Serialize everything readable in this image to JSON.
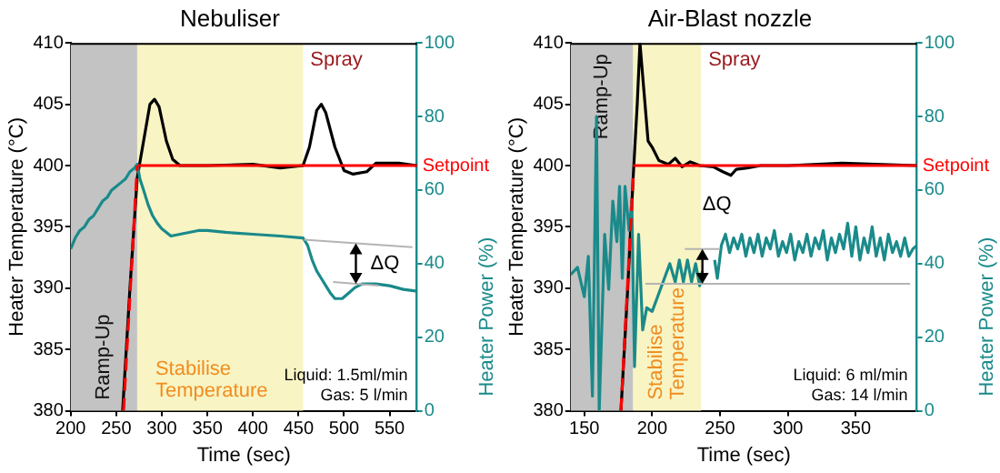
{
  "chart_data": [
    {
      "type": "line",
      "title": "Nebuliser",
      "xlabel": "Time (sec)",
      "ylabel": "Heater Temperature (°C)",
      "y2label": "Heater Power (%)",
      "marker": "none",
      "xlim": [
        200,
        580
      ],
      "xticks": [
        200,
        250,
        300,
        350,
        400,
        450,
        500,
        550
      ],
      "ylim": [
        380,
        410
      ],
      "yticks": [
        380,
        385,
        390,
        395,
        400,
        405,
        410
      ],
      "y2lim": [
        0,
        100
      ],
      "y2ticks": [
        0,
        20,
        40,
        60,
        80,
        100
      ],
      "bands": [
        {
          "axis": "x",
          "from": 200,
          "to": 273,
          "label": "Ramp-Up",
          "color": "#c3c3c3"
        },
        {
          "axis": "x",
          "from": 273,
          "to": 455,
          "label": "Stabilise Temperature",
          "color": "#f8f4c4"
        }
      ],
      "series": [
        {
          "color": "#000000",
          "x": [
            257,
            265,
            273,
            280,
            287,
            292,
            297,
            305,
            312,
            320,
            350,
            400,
            430,
            455,
            462,
            470,
            475,
            480,
            490,
            500,
            510,
            525,
            535,
            560,
            580
          ],
          "values": [
            380,
            390,
            399,
            402,
            405,
            405.4,
            404.8,
            402,
            400.5,
            400,
            400,
            400.1,
            399.8,
            400,
            401.5,
            404.5,
            405,
            404.3,
            401.5,
            399.6,
            399.3,
            399.5,
            400.2,
            400.2,
            400
          ]
        },
        {
          "color": "#1a8a8a",
          "axis": "y2",
          "x": [
            200,
            205,
            210,
            215,
            220,
            225,
            230,
            235,
            240,
            245,
            250,
            255,
            260,
            265,
            270,
            273,
            276,
            280,
            285,
            290,
            295,
            300,
            305,
            310,
            320,
            330,
            340,
            350,
            370,
            400,
            430,
            455,
            460,
            465,
            470,
            475,
            480,
            485,
            490,
            498,
            505,
            512,
            520,
            535,
            550,
            565,
            580
          ],
          "values": [
            44,
            47,
            49,
            50,
            52,
            53,
            55,
            57,
            58,
            60,
            61,
            62,
            63,
            65,
            66,
            67,
            63,
            60,
            56,
            53,
            51,
            49.5,
            48.5,
            47.5,
            48,
            48.5,
            49,
            49,
            48.5,
            48,
            47.5,
            47,
            45,
            41,
            38,
            36,
            34,
            32,
            30.5,
            30.5,
            32,
            33.5,
            34.5,
            34.5,
            34,
            33,
            32.5
          ]
        },
        {
          "color": "#ff0000",
          "line_style": "dashed",
          "x": [
            258,
            273
          ],
          "values": [
            380,
            400
          ]
        },
        {
          "name": "Setpoint",
          "color": "#ff0000",
          "x": [
            273,
            580
          ],
          "values": [
            400,
            400
          ]
        },
        {
          "color": "#b4b4b4",
          "axis": "y2",
          "x": [
            456,
            575
          ],
          "values": [
            46.5,
            44.5
          ]
        },
        {
          "color": "#b4b4b4",
          "axis": "y2",
          "x": [
            488,
            538
          ],
          "values": [
            35,
            34
          ]
        }
      ],
      "annotations": [
        "Spray",
        "ΔQ",
        "Liquid: 1.5ml/min",
        "Gas: 5 l/min"
      ]
    },
    {
      "type": "line",
      "title": "Air-Blast nozzle",
      "xlabel": "Time (sec)",
      "ylabel": "Heater Temperature (°C)",
      "y2label": "Heater Power (%)",
      "marker": "none",
      "xlim": [
        140,
        395
      ],
      "xticks": [
        150,
        200,
        250,
        300,
        350
      ],
      "ylim": [
        380,
        410
      ],
      "yticks": [
        380,
        385,
        390,
        395,
        400,
        405,
        410
      ],
      "y2lim": [
        0,
        100
      ],
      "y2ticks": [
        0,
        20,
        40,
        60,
        80,
        100
      ],
      "bands": [
        {
          "axis": "x",
          "from": 140,
          "to": 186,
          "label": "Ramp-Up",
          "color": "#c3c3c3"
        },
        {
          "axis": "x",
          "from": 186,
          "to": 236,
          "label": "Stabilise Temperature",
          "color": "#f8f4c4"
        }
      ],
      "series": [
        {
          "color": "#000000",
          "x": [
            177,
            182,
            186,
            189,
            191,
            194,
            197,
            200,
            205,
            212,
            217,
            222,
            228,
            235,
            245,
            252,
            258,
            262,
            270,
            280,
            300,
            340,
            395
          ],
          "values": [
            380,
            390,
            399,
            405,
            410,
            406,
            402,
            401.5,
            400.4,
            400.1,
            400.6,
            399.9,
            400.3,
            400,
            399.9,
            399.5,
            399.2,
            399.7,
            399.8,
            400,
            400,
            400.2,
            400
          ]
        },
        {
          "color": "#1a8a8a",
          "axis": "y2",
          "x": [
            140,
            145,
            150,
            153,
            156,
            159,
            161,
            165,
            168,
            171,
            174,
            176,
            178,
            180,
            183,
            185,
            187,
            190,
            193,
            196,
            200,
            204,
            209,
            213,
            217,
            220,
            223,
            226,
            229,
            232,
            235,
            237,
            240,
            246,
            248,
            251,
            254,
            257,
            260,
            263,
            266,
            269,
            272,
            275,
            278,
            281,
            284,
            287,
            290,
            293,
            296,
            299,
            302,
            305,
            308,
            311,
            314,
            317,
            320,
            323,
            326,
            329,
            332,
            335,
            338,
            341,
            344,
            347,
            350,
            353,
            356,
            359,
            362,
            365,
            368,
            371,
            374,
            377,
            380,
            383,
            386,
            389,
            392,
            395
          ],
          "values": [
            37,
            39,
            31,
            42,
            4,
            80,
            0,
            48,
            33,
            57,
            46,
            61,
            36,
            61,
            49,
            57,
            12,
            48,
            22,
            28,
            27,
            31,
            36,
            40,
            35,
            41,
            35,
            41,
            35,
            40,
            34,
            38,
            null,
            41,
            36,
            45,
            48,
            43,
            47,
            44,
            48,
            42,
            47,
            43,
            48,
            42,
            47,
            44,
            49,
            42,
            46,
            43,
            48,
            41,
            46,
            43,
            48,
            42,
            47,
            44,
            49,
            41,
            47,
            43,
            48,
            44,
            51,
            42,
            50,
            41,
            47,
            43,
            50,
            42,
            47,
            41,
            48,
            43,
            46,
            42,
            47,
            42,
            44,
            45
          ]
        },
        {
          "color": "#ff0000",
          "line_style": "dashed",
          "x": [
            177,
            186
          ],
          "values": [
            380,
            399
          ]
        },
        {
          "name": "Setpoint",
          "color": "#ff0000",
          "x": [
            186,
            395
          ],
          "values": [
            400,
            400
          ]
        },
        {
          "color": "#b4b4b4",
          "axis": "y2",
          "x": [
            224,
            250
          ],
          "values": [
            44,
            44
          ]
        },
        {
          "color": "#b4b4b4",
          "axis": "y2",
          "x": [
            195,
            390
          ],
          "values": [
            34.5,
            34.5
          ]
        }
      ],
      "annotations": [
        "Spray",
        "ΔQ",
        "Liquid: 6 ml/min",
        "Gas: 14 l/min"
      ]
    }
  ]
}
